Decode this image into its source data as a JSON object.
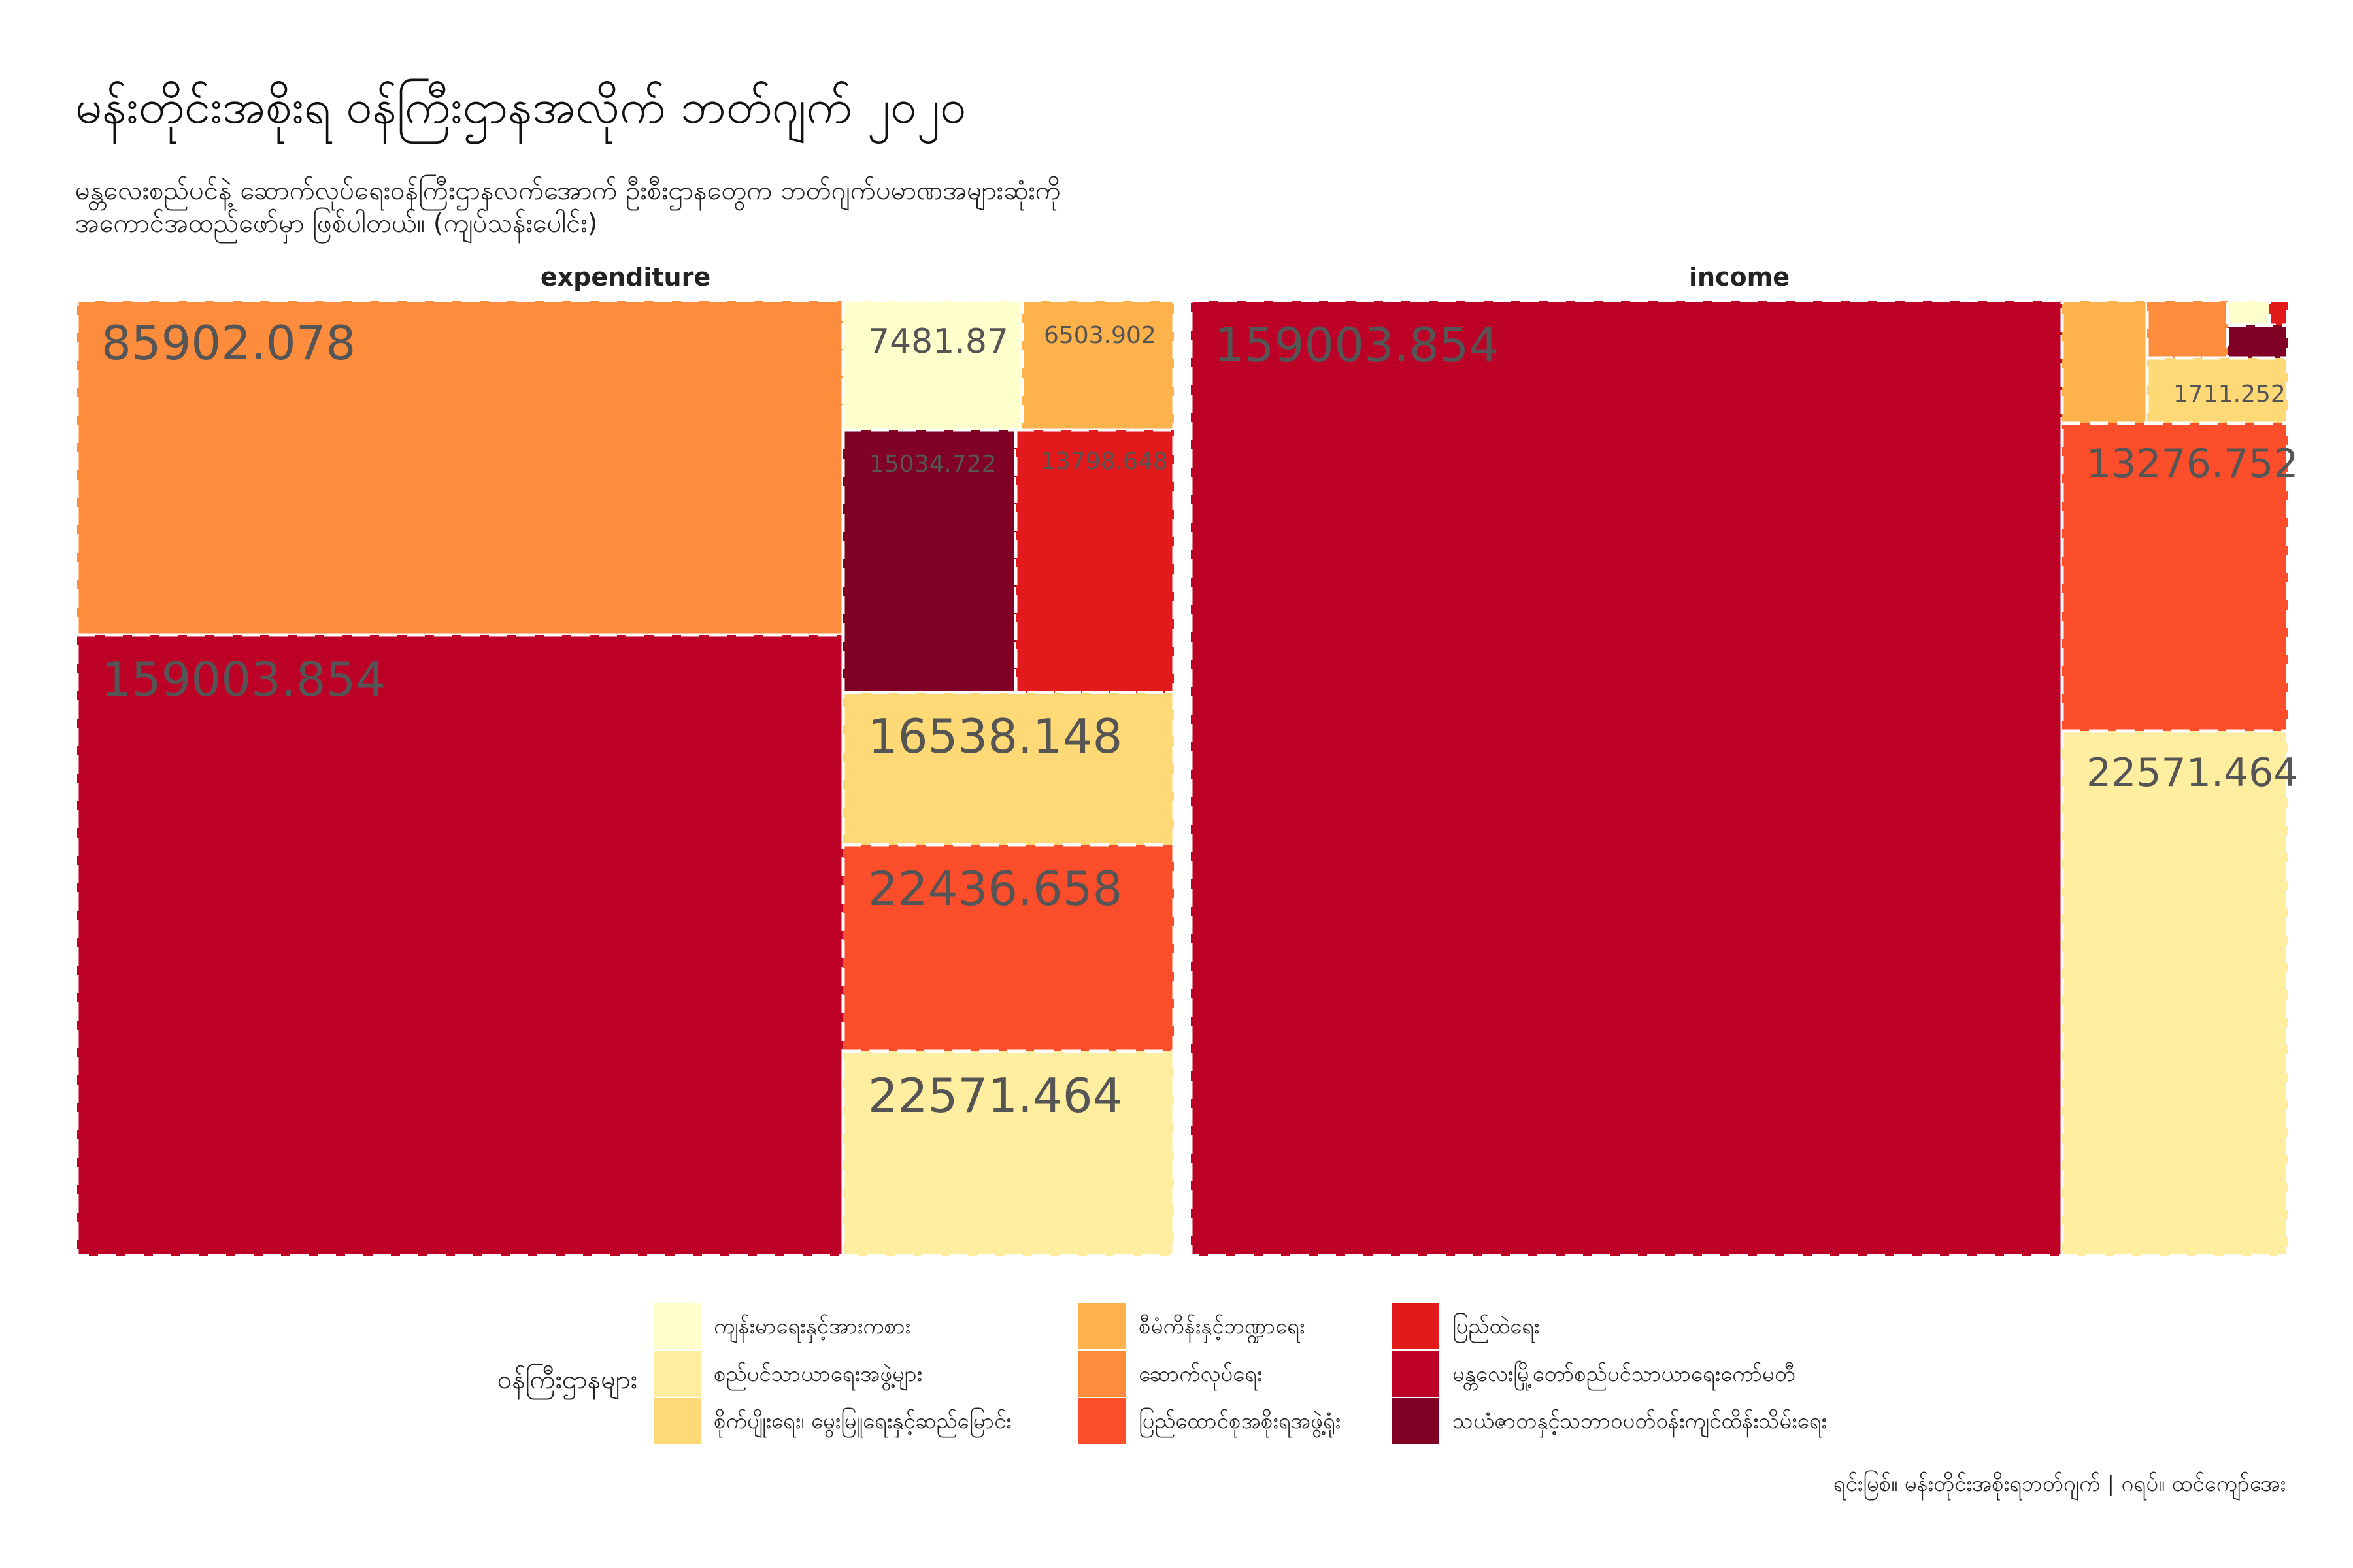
{
  "chart_data": {
    "type": "treemap",
    "title": "မန်းတိုင်းအစိုးရ ဝန်ကြီးဌာနအလိုက် ဘတ်ဂျက် ၂၀၂၀",
    "subtitle_line1": "မန္တလေးစည်ပင်နဲ့ ဆောက်လုပ်ရေးဝန်ကြီးဌာနလက်အောက် ဦးစီးဌာနတွေက ဘတ်ဂျက်ပမာဏအများဆုံးကို",
    "subtitle_line2": "အကောင်အထည်ဖော်မှာ ဖြစ်ပါတယ်။ (ကျပ်သန်းပေါင်း)",
    "caption": "ရင်းမြစ်။ မန်းတိုင်းအစိုးရဘတ်ဂျက် | ဂရပ်။ ထင်ကျော်အေး",
    "legend_title": "ဝန်ကြီးဌာနများ",
    "categories": [
      {
        "name": "ကျန်းမာရေးနှင့်အားကစား",
        "color": "#FFFFCC"
      },
      {
        "name": "စည်ပင်သာယာရေးအဖွဲ့များ",
        "color": "#FFEDA0"
      },
      {
        "name": "စိုက်ပျိုးရေး၊ မွေးမြူရေးနှင့်ဆည်မြောင်း",
        "color": "#FED976"
      },
      {
        "name": "စီမံကိန်းနှင့်ဘဏ္ဍာရေး",
        "color": "#FEB24C"
      },
      {
        "name": "ဆောက်လုပ်ရေး",
        "color": "#FD8D3C"
      },
      {
        "name": "ပြည်ထောင်စုအစိုးရအဖွဲ့ရုံး",
        "color": "#FC4E2A"
      },
      {
        "name": "ပြည်ထဲရေး",
        "color": "#E31A1C"
      },
      {
        "name": "မန္တလေးမြို့တော်စည်ပင်သာယာရေးကော်မတီ",
        "color": "#BD0026"
      },
      {
        "name": "သယံဇာတနှင့်သဘာဝပတ်ဝန်းကျင်ထိန်းသိမ်းရေး",
        "color": "#800026"
      }
    ],
    "facets": [
      {
        "name": "expenditure",
        "tiles": [
          {
            "category": "ဆောက်လုပ်ရေး",
            "value": 85902.078,
            "label": "85902.078"
          },
          {
            "category": "မန္တလေးမြို့တော်စည်ပင်သာယာရေးကော်မတီ",
            "value": 159003.854,
            "label": "159003.854"
          },
          {
            "category": "ကျန်းမာရေးနှင့်အားကစား",
            "value": 7481.87,
            "label": "7481.87"
          },
          {
            "category": "စီမံကိန်းနှင့်ဘဏ္ဍာရေး",
            "value": 6503.902,
            "label": "6503.902"
          },
          {
            "category": "သယံဇာတနှင့်သဘာဝပတ်ဝန်းကျင်ထိန်းသိမ်းရေး",
            "value": 15034.722,
            "label": "15034.722"
          },
          {
            "category": "ပြည်ထဲရေး",
            "value": 13798.648,
            "label": "13798.648"
          },
          {
            "category": "စိုက်ပျိုးရေး၊ မွေးမြူရေးနှင့်ဆည်မြောင်း",
            "value": 16538.148,
            "label": "16538.148"
          },
          {
            "category": "ပြည်ထောင်စုအစိုးရအဖွဲ့ရုံး",
            "value": 22436.658,
            "label": "22436.658"
          },
          {
            "category": "စည်ပင်သာယာရေးအဖွဲ့များ",
            "value": 22571.464,
            "label": "22571.464"
          }
        ]
      },
      {
        "name": "income",
        "tiles": [
          {
            "category": "မန္တလေးမြို့တော်စည်ပင်သာယာရေးကော်မတီ",
            "value": 159003.854,
            "label": "159003.854"
          },
          {
            "category": "စီမံကိန်းနှင့်ဘဏ္ဍာရေး",
            "value": null,
            "label": ""
          },
          {
            "category": "ဆောက်လုပ်ရေး",
            "value": null,
            "label": ""
          },
          {
            "category": "ကျန်းမာရေးနှင့်အားကစား",
            "value": null,
            "label": ""
          },
          {
            "category": "ပြည်ထဲရေး",
            "value": null,
            "label": ""
          },
          {
            "category": "သယံဇာတနှင့်သဘာဝပတ်ဝန်းကျင်ထိန်းသိမ်းရေး",
            "value": null,
            "label": ""
          },
          {
            "category": "စိုက်ပျိုးရေး၊ မွေးမြူရေးနှင့်ဆည်မြောင်း",
            "value": 1711.252,
            "label": "1711.252"
          },
          {
            "category": "ပြည်ထောင်စုအစိုးရအဖွဲ့ရုံး",
            "value": 13276.752,
            "label": "13276.752"
          },
          {
            "category": "စည်ပင်သာယာရေးအဖွဲ့များ",
            "value": 22571.464,
            "label": "22571.464"
          }
        ]
      }
    ]
  }
}
